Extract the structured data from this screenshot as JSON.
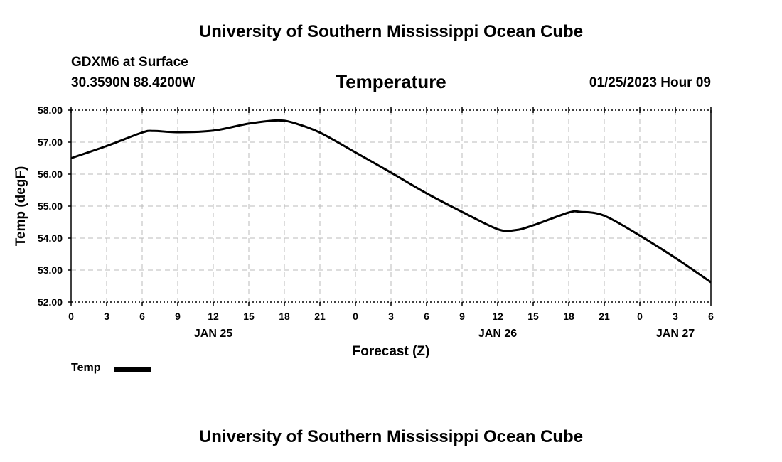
{
  "header": {
    "title": "University of Southern Mississippi Ocean Cube",
    "station_line": "GDXM6 at Surface",
    "coords_line": "30.3590N  88.4200W",
    "chart_title": "Temperature",
    "datetime": "01/25/2023 Hour 09"
  },
  "footer": {
    "title": "University of Southern Mississippi Ocean Cube"
  },
  "legend": {
    "label": "Temp"
  },
  "chart_data": {
    "type": "line",
    "title": "Temperature",
    "xlabel": "Forecast (Z)",
    "ylabel": "Temp (degF)",
    "ylim": [
      52.0,
      58.0
    ],
    "xlim": [
      0,
      54
    ],
    "y_ticks": [
      "52.00",
      "53.00",
      "54.00",
      "55.00",
      "56.00",
      "57.00",
      "58.00"
    ],
    "x_tick_labels": [
      "0",
      "3",
      "6",
      "9",
      "12",
      "15",
      "18",
      "21",
      "0",
      "3",
      "6",
      "9",
      "12",
      "15",
      "18",
      "21",
      "0",
      "3",
      "6"
    ],
    "date_labels": [
      {
        "hour": 12,
        "label": "JAN 25"
      },
      {
        "hour": 36,
        "label": "JAN 26"
      },
      {
        "hour": 51,
        "label": "JAN 27"
      }
    ],
    "grid": true,
    "series": [
      {
        "name": "Temp",
        "x": [
          0,
          3,
          6,
          7,
          9,
          12,
          15,
          17.5,
          19,
          21,
          24,
          27,
          30,
          33,
          36,
          37.5,
          39,
          42,
          43,
          45,
          48,
          51,
          54
        ],
        "values": [
          56.5,
          56.88,
          57.3,
          57.35,
          57.31,
          57.36,
          57.58,
          57.68,
          57.58,
          57.3,
          56.68,
          56.05,
          55.4,
          54.82,
          54.28,
          54.25,
          54.4,
          54.8,
          54.82,
          54.7,
          54.08,
          53.38,
          52.62
        ]
      }
    ]
  }
}
